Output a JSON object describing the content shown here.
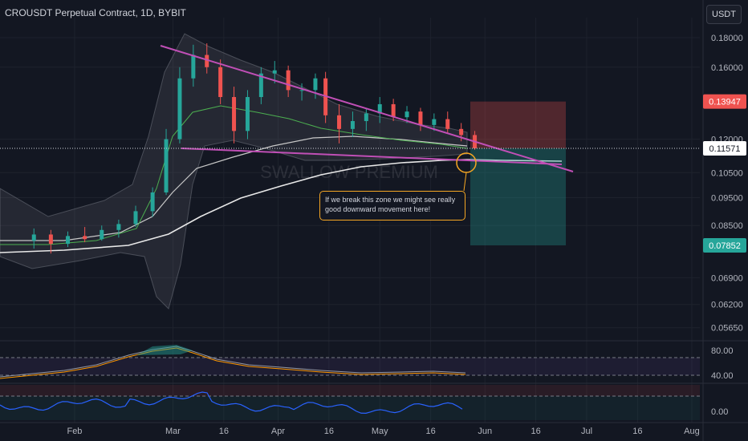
{
  "header": {
    "title": "CROUSDT Perpetual Contract, 1D, BYBIT",
    "currency": "USDT"
  },
  "watermark": "SWALLOW PREMIUM",
  "annotation": "If we break this zone we might see really good downward movement here!",
  "colors": {
    "bg": "#131722",
    "up": "#26a69a",
    "down": "#ef5350",
    "trendline": "#c04fb6",
    "ma_white": "#e8e8e8",
    "ma_green": "#4caf50",
    "band": "#787b86",
    "target": "#26a69a",
    "stop": "#ef5350",
    "annot": "#f5a623",
    "osc_blue": "#2962ff",
    "osc_orange": "#ff9800"
  },
  "chart_data": [
    {
      "type": "candlestick",
      "symbol": "CROUSDT",
      "timeframe": "1D",
      "x_ticks": [
        "Feb",
        "Mar",
        "16",
        "Apr",
        "16",
        "May",
        "16",
        "Jun",
        "16",
        "Jul",
        "16",
        "Aug"
      ],
      "y_ticks": [
        "0.18000",
        "0.16000",
        "0.12000",
        "0.10500",
        "0.09500",
        "0.08500",
        "0.06900",
        "0.06200",
        "0.05650"
      ],
      "price_badges": [
        {
          "label": "0.13947",
          "color": "#ef5350"
        },
        {
          "label": "0.11571",
          "color": "#ffffff"
        },
        {
          "label": "0.07852",
          "color": "#26a69a"
        }
      ],
      "ylim": [
        0.0545,
        0.195
      ],
      "candles": [
        {
          "date": "2024-01-20",
          "o": 0.08,
          "h": 0.084,
          "l": 0.0775,
          "c": 0.082
        },
        {
          "date": "2024-01-25",
          "o": 0.082,
          "h": 0.0835,
          "l": 0.076,
          "c": 0.079
        },
        {
          "date": "2024-01-30",
          "o": 0.079,
          "h": 0.083,
          "l": 0.078,
          "c": 0.0815
        },
        {
          "date": "2024-02-04",
          "o": 0.0815,
          "h": 0.0845,
          "l": 0.0795,
          "c": 0.0805
        },
        {
          "date": "2024-02-09",
          "o": 0.0805,
          "h": 0.085,
          "l": 0.08,
          "c": 0.0835
        },
        {
          "date": "2024-02-14",
          "o": 0.0835,
          "h": 0.087,
          "l": 0.081,
          "c": 0.0855
        },
        {
          "date": "2024-02-19",
          "o": 0.0855,
          "h": 0.092,
          "l": 0.0845,
          "c": 0.09
        },
        {
          "date": "2024-02-24",
          "o": 0.09,
          "h": 0.099,
          "l": 0.088,
          "c": 0.097
        },
        {
          "date": "2024-02-28",
          "o": 0.097,
          "h": 0.125,
          "l": 0.096,
          "c": 0.12
        },
        {
          "date": "2024-03-03",
          "o": 0.12,
          "h": 0.16,
          "l": 0.118,
          "c": 0.153
        },
        {
          "date": "2024-03-07",
          "o": 0.153,
          "h": 0.175,
          "l": 0.148,
          "c": 0.168
        },
        {
          "date": "2024-03-11",
          "o": 0.168,
          "h": 0.176,
          "l": 0.156,
          "c": 0.16
        },
        {
          "date": "2024-03-15",
          "o": 0.16,
          "h": 0.165,
          "l": 0.138,
          "c": 0.142
        },
        {
          "date": "2024-03-19",
          "o": 0.142,
          "h": 0.148,
          "l": 0.118,
          "c": 0.124
        },
        {
          "date": "2024-03-23",
          "o": 0.124,
          "h": 0.146,
          "l": 0.12,
          "c": 0.142
        },
        {
          "date": "2024-03-27",
          "o": 0.142,
          "h": 0.16,
          "l": 0.138,
          "c": 0.156
        },
        {
          "date": "2024-03-31",
          "o": 0.156,
          "h": 0.164,
          "l": 0.15,
          "c": 0.158
        },
        {
          "date": "2024-04-04",
          "o": 0.158,
          "h": 0.161,
          "l": 0.142,
          "c": 0.146
        },
        {
          "date": "2024-04-08",
          "o": 0.146,
          "h": 0.15,
          "l": 0.14,
          "c": 0.146
        },
        {
          "date": "2024-04-12",
          "o": 0.146,
          "h": 0.156,
          "l": 0.141,
          "c": 0.153
        },
        {
          "date": "2024-04-15",
          "o": 0.153,
          "h": 0.157,
          "l": 0.128,
          "c": 0.132
        },
        {
          "date": "2024-04-19",
          "o": 0.132,
          "h": 0.138,
          "l": 0.118,
          "c": 0.125
        },
        {
          "date": "2024-04-23",
          "o": 0.125,
          "h": 0.134,
          "l": 0.121,
          "c": 0.129
        },
        {
          "date": "2024-04-27",
          "o": 0.129,
          "h": 0.136,
          "l": 0.124,
          "c": 0.133
        },
        {
          "date": "2024-05-01",
          "o": 0.133,
          "h": 0.142,
          "l": 0.128,
          "c": 0.138
        },
        {
          "date": "2024-05-05",
          "o": 0.138,
          "h": 0.141,
          "l": 0.129,
          "c": 0.131
        },
        {
          "date": "2024-05-09",
          "o": 0.131,
          "h": 0.137,
          "l": 0.128,
          "c": 0.134
        },
        {
          "date": "2024-05-13",
          "o": 0.134,
          "h": 0.136,
          "l": 0.124,
          "c": 0.127
        },
        {
          "date": "2024-05-17",
          "o": 0.127,
          "h": 0.133,
          "l": 0.124,
          "c": 0.13
        },
        {
          "date": "2024-05-21",
          "o": 0.13,
          "h": 0.134,
          "l": 0.123,
          "c": 0.125
        },
        {
          "date": "2024-05-25",
          "o": 0.125,
          "h": 0.128,
          "l": 0.119,
          "c": 0.122
        },
        {
          "date": "2024-05-29",
          "o": 0.122,
          "h": 0.124,
          "l": 0.115,
          "c": 0.1157
        }
      ],
      "oscillators": {
        "rsi_ticks": [
          "80.00",
          "40.00"
        ],
        "macd_ticks": [
          "0.00"
        ]
      }
    }
  ]
}
